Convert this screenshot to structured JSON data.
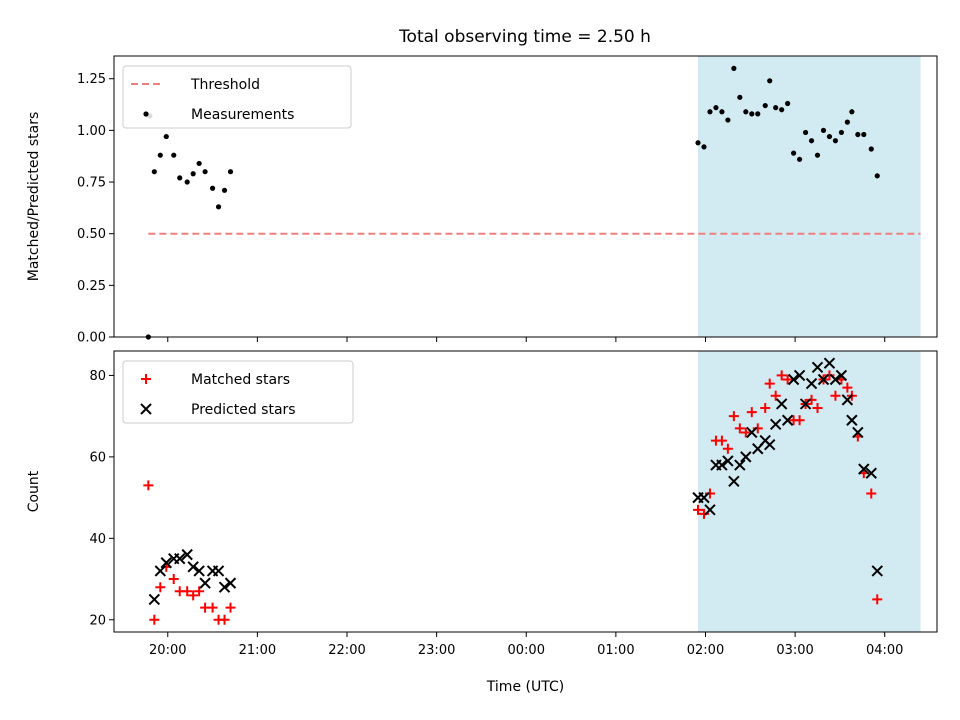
{
  "chart_data": [
    {
      "type": "scatter",
      "title": "Total observing time = 2.50 h",
      "xlabel": "",
      "ylabel": "Matched/Predicted stars",
      "ylim": [
        0,
        1.36
      ],
      "yticks": [
        "0.00",
        "0.25",
        "0.50",
        "0.75",
        "1.00",
        "1.25"
      ],
      "yticks_values": [
        0,
        0.25,
        0.5,
        0.75,
        1.0,
        1.25
      ],
      "legend_position": "upper-left",
      "highlight_span": [
        "01:55",
        "04:24"
      ],
      "highlight_color": "#add8e6",
      "series": [
        {
          "name": "Threshold",
          "kind": "dashed-line",
          "color": "#f08080",
          "x": [
            "19:47",
            "04:24"
          ],
          "y": [
            0.5,
            0.5
          ]
        },
        {
          "name": "Measurements",
          "kind": "dot",
          "color": "#000000",
          "points": [
            [
              "19:47",
              0.0
            ],
            [
              "19:48",
              1.07
            ],
            [
              "19:51",
              0.8
            ],
            [
              "19:55",
              0.88
            ],
            [
              "19:59",
              0.97
            ],
            [
              "20:04",
              0.88
            ],
            [
              "20:08",
              0.77
            ],
            [
              "20:13",
              0.75
            ],
            [
              "20:17",
              0.79
            ],
            [
              "20:21",
              0.84
            ],
            [
              "20:25",
              0.8
            ],
            [
              "20:30",
              0.72
            ],
            [
              "20:34",
              0.63
            ],
            [
              "20:38",
              0.71
            ],
            [
              "20:42",
              0.8
            ],
            [
              "01:55",
              0.94
            ],
            [
              "01:59",
              0.92
            ],
            [
              "02:03",
              1.09
            ],
            [
              "02:07",
              1.11
            ],
            [
              "02:11",
              1.09
            ],
            [
              "02:15",
              1.05
            ],
            [
              "02:19",
              1.3
            ],
            [
              "02:23",
              1.16
            ],
            [
              "02:27",
              1.09
            ],
            [
              "02:31",
              1.08
            ],
            [
              "02:35",
              1.08
            ],
            [
              "02:40",
              1.12
            ],
            [
              "02:43",
              1.24
            ],
            [
              "02:47",
              1.11
            ],
            [
              "02:51",
              1.1
            ],
            [
              "02:55",
              1.13
            ],
            [
              "02:59",
              0.89
            ],
            [
              "03:03",
              0.86
            ],
            [
              "03:07",
              0.99
            ],
            [
              "03:11",
              0.95
            ],
            [
              "03:15",
              0.88
            ],
            [
              "03:19",
              1.0
            ],
            [
              "03:23",
              0.97
            ],
            [
              "03:27",
              0.95
            ],
            [
              "03:31",
              0.99
            ],
            [
              "03:35",
              1.04
            ],
            [
              "03:38",
              1.09
            ],
            [
              "03:42",
              0.98
            ],
            [
              "03:46",
              0.98
            ],
            [
              "03:51",
              0.91
            ],
            [
              "03:55",
              0.78
            ]
          ]
        }
      ]
    },
    {
      "type": "scatter",
      "title": "",
      "xlabel": "Time (UTC)",
      "ylabel": "Count",
      "ylim": [
        17,
        86
      ],
      "yticks": [
        "20",
        "40",
        "60",
        "80"
      ],
      "yticks_values": [
        20,
        40,
        60,
        80
      ],
      "xticks": [
        "20:00",
        "21:00",
        "22:00",
        "23:00",
        "00:00",
        "01:00",
        "02:00",
        "03:00",
        "04:00"
      ],
      "legend_position": "upper-left",
      "highlight_span": [
        "01:55",
        "04:24"
      ],
      "highlight_color": "#add8e6",
      "series": [
        {
          "name": "Matched stars",
          "kind": "plus",
          "color": "#ff0000",
          "points": [
            [
              "19:47",
              53
            ],
            [
              "19:51",
              20
            ],
            [
              "19:55",
              28
            ],
            [
              "19:59",
              33
            ],
            [
              "20:04",
              30
            ],
            [
              "20:08",
              27
            ],
            [
              "20:13",
              27
            ],
            [
              "20:17",
              26
            ],
            [
              "20:21",
              27
            ],
            [
              "20:25",
              23
            ],
            [
              "20:30",
              23
            ],
            [
              "20:34",
              20
            ],
            [
              "20:38",
              20
            ],
            [
              "20:42",
              23
            ],
            [
              "01:55",
              47
            ],
            [
              "01:59",
              46
            ],
            [
              "02:03",
              51
            ],
            [
              "02:07",
              64
            ],
            [
              "02:11",
              64
            ],
            [
              "02:15",
              62
            ],
            [
              "02:19",
              70
            ],
            [
              "02:23",
              67
            ],
            [
              "02:27",
              66
            ],
            [
              "02:31",
              71
            ],
            [
              "02:35",
              67
            ],
            [
              "02:40",
              72
            ],
            [
              "02:43",
              78
            ],
            [
              "02:47",
              75
            ],
            [
              "02:51",
              80
            ],
            [
              "02:55",
              79
            ],
            [
              "02:59",
              69
            ],
            [
              "03:03",
              69
            ],
            [
              "03:07",
              73
            ],
            [
              "03:11",
              74
            ],
            [
              "03:15",
              72
            ],
            [
              "03:19",
              79
            ],
            [
              "03:23",
              80
            ],
            [
              "03:27",
              75
            ],
            [
              "03:31",
              79
            ],
            [
              "03:35",
              77
            ],
            [
              "03:38",
              75
            ],
            [
              "03:42",
              65
            ],
            [
              "03:46",
              56
            ],
            [
              "03:51",
              51
            ],
            [
              "03:55",
              25
            ]
          ]
        },
        {
          "name": "Predicted stars",
          "kind": "cross",
          "color": "#000000",
          "points": [
            [
              "19:51",
              25
            ],
            [
              "19:55",
              32
            ],
            [
              "19:59",
              34
            ],
            [
              "20:04",
              35
            ],
            [
              "20:08",
              35
            ],
            [
              "20:13",
              36
            ],
            [
              "20:17",
              33
            ],
            [
              "20:21",
              32
            ],
            [
              "20:25",
              29
            ],
            [
              "20:30",
              32
            ],
            [
              "20:34",
              32
            ],
            [
              "20:38",
              28
            ],
            [
              "20:42",
              29
            ],
            [
              "01:55",
              50
            ],
            [
              "01:59",
              50
            ],
            [
              "02:03",
              47
            ],
            [
              "02:07",
              58
            ],
            [
              "02:11",
              58
            ],
            [
              "02:15",
              59
            ],
            [
              "02:19",
              54
            ],
            [
              "02:23",
              58
            ],
            [
              "02:27",
              60
            ],
            [
              "02:31",
              66
            ],
            [
              "02:35",
              62
            ],
            [
              "02:40",
              64
            ],
            [
              "02:43",
              63
            ],
            [
              "02:47",
              68
            ],
            [
              "02:51",
              73
            ],
            [
              "02:55",
              69
            ],
            [
              "02:59",
              79
            ],
            [
              "03:03",
              80
            ],
            [
              "03:07",
              73
            ],
            [
              "03:11",
              78
            ],
            [
              "03:15",
              82
            ],
            [
              "03:19",
              79
            ],
            [
              "03:23",
              83
            ],
            [
              "03:27",
              79
            ],
            [
              "03:31",
              80
            ],
            [
              "03:35",
              74
            ],
            [
              "03:38",
              69
            ],
            [
              "03:42",
              66
            ],
            [
              "03:46",
              57
            ],
            [
              "03:51",
              56
            ],
            [
              "03:55",
              32
            ]
          ]
        }
      ]
    }
  ]
}
